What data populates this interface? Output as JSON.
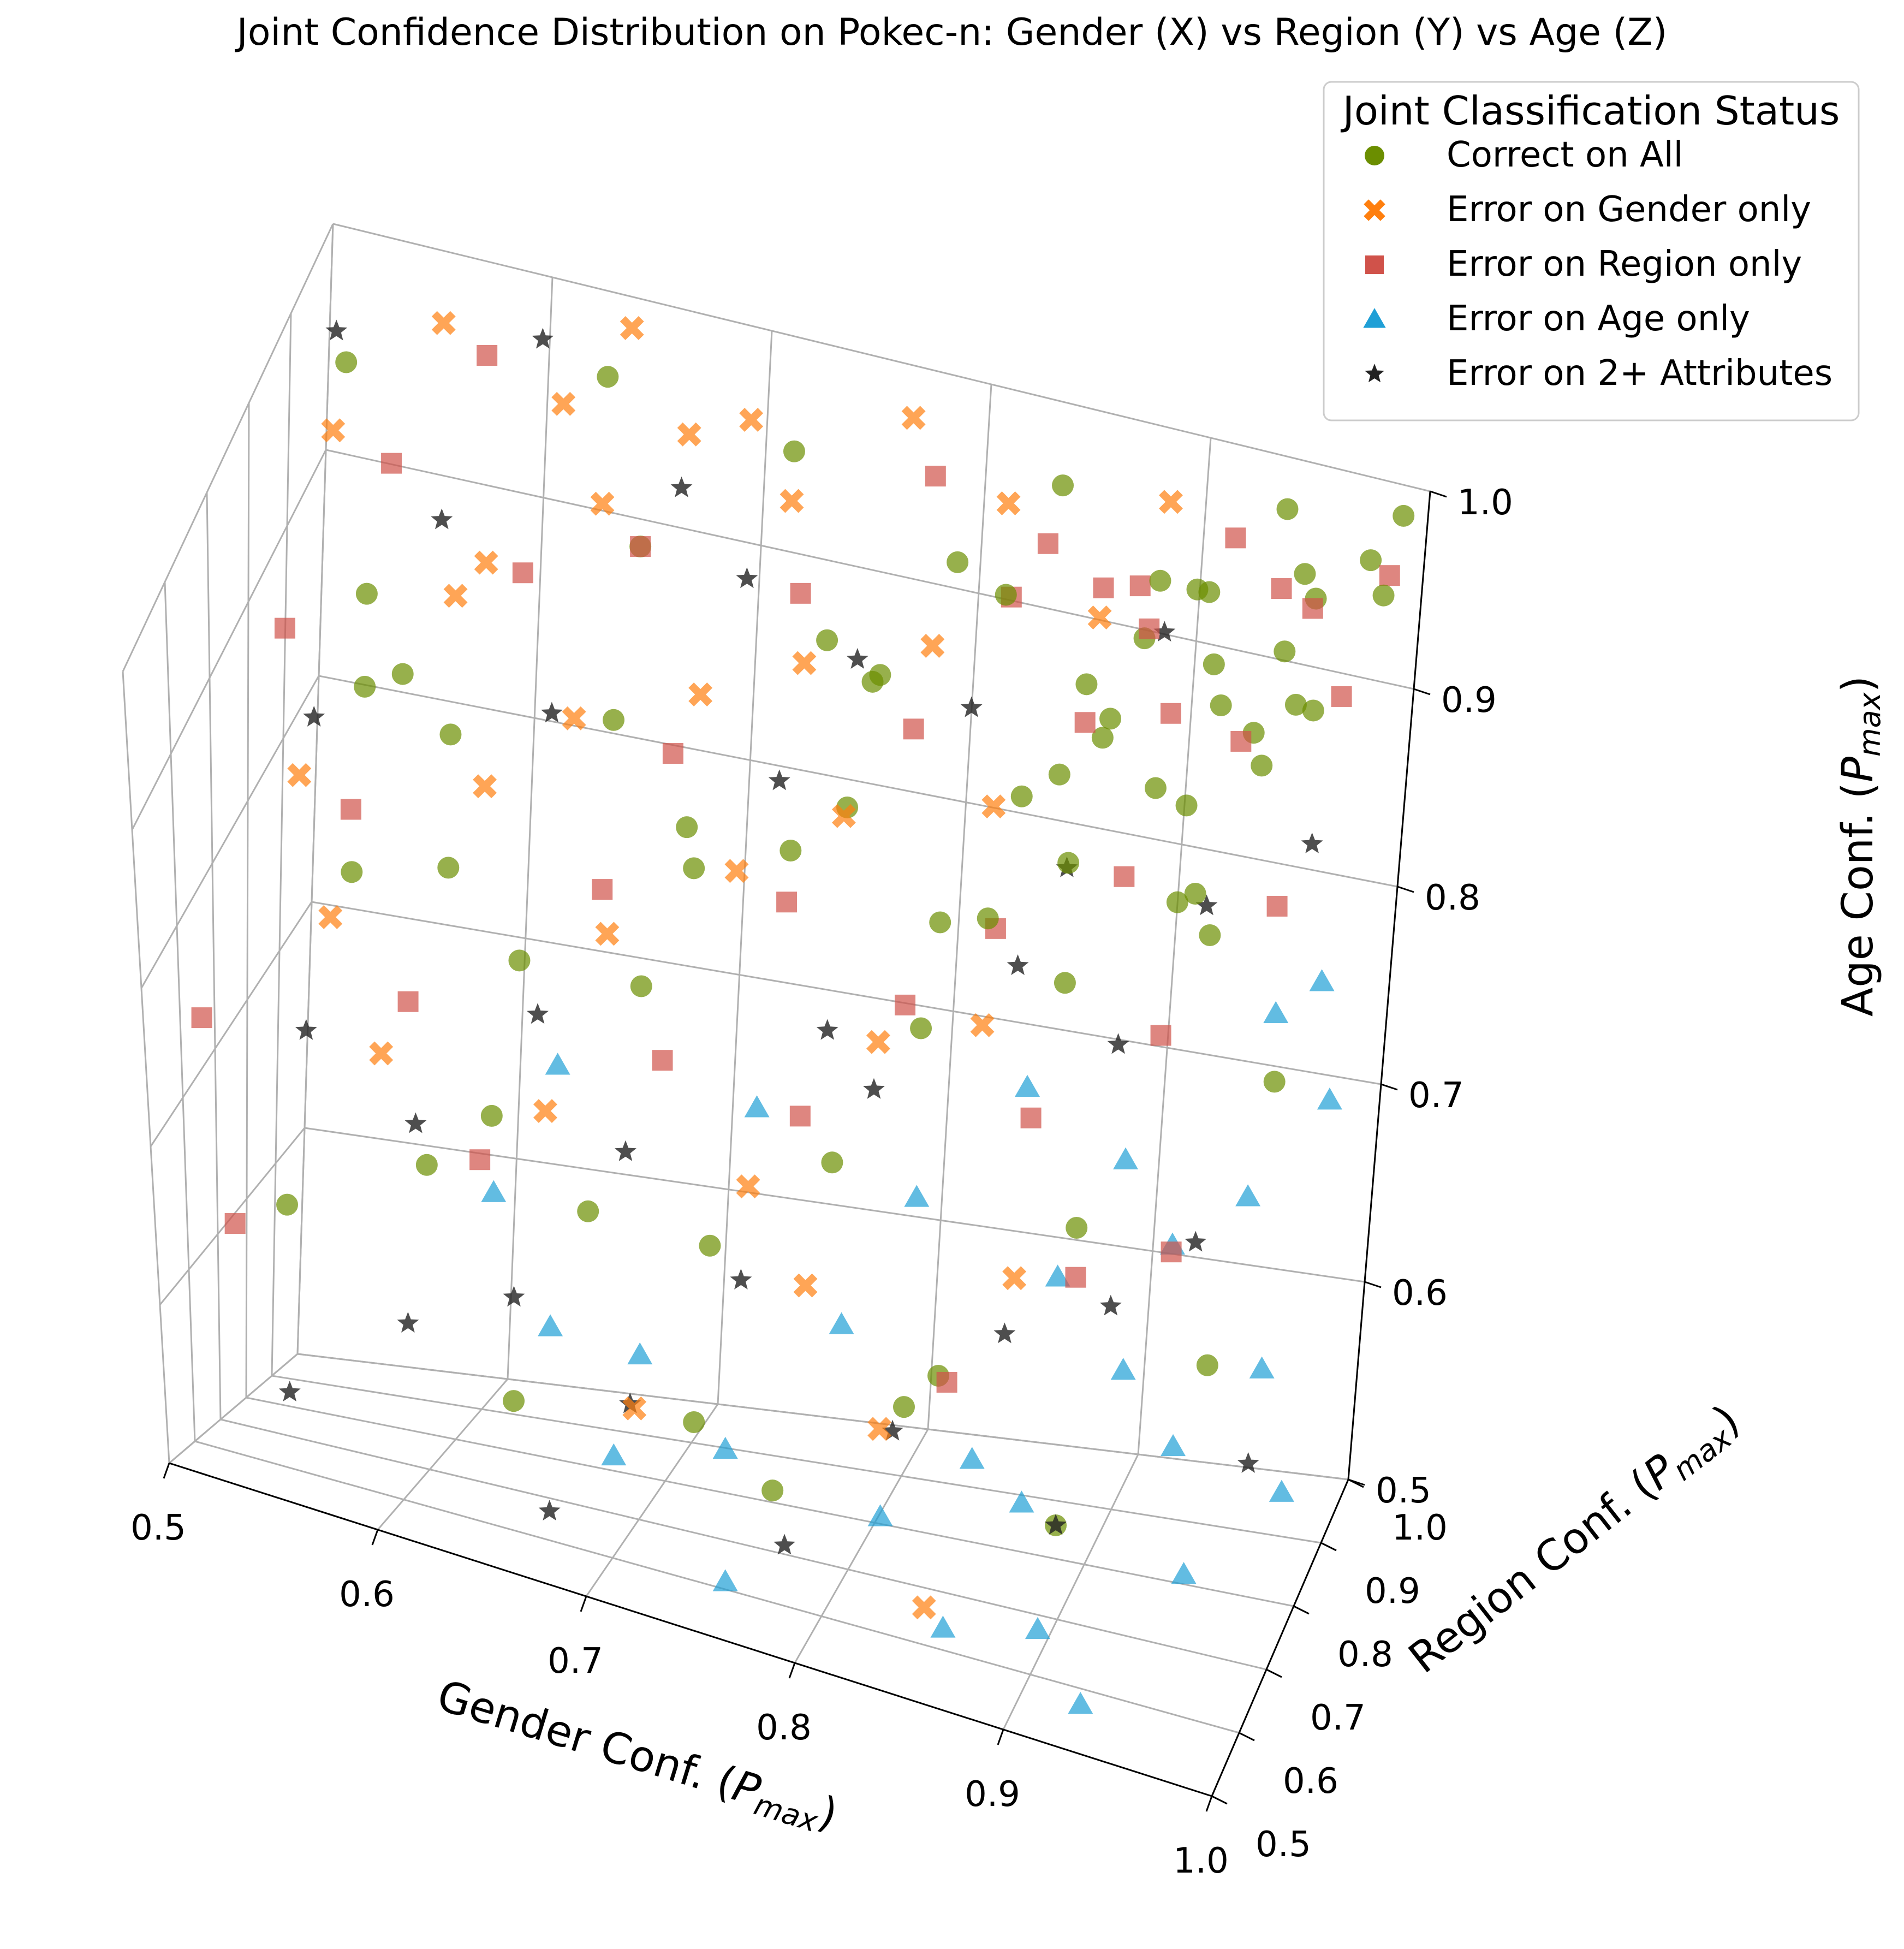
{
  "chart_data": {
    "type": "scatter",
    "dimensions": 3,
    "title": "Joint Confidence Distribution on Pokec-n: Gender (X) vs Region (Y) vs Age (Z)",
    "xlabel": "Gender Conf. (P_max)",
    "ylabel": "Region Conf. (P_max)",
    "zlabel": "Age Conf. (P_max)",
    "label_base": "Conf. (",
    "label_var": "P",
    "label_sub": "max",
    "label_close": ")",
    "axis_names": {
      "x": "Gender",
      "y": "Region",
      "z": "Age"
    },
    "xlim": [
      0.5,
      1.0
    ],
    "ylim": [
      0.5,
      1.0
    ],
    "zlim": [
      0.5,
      1.0
    ],
    "xticks": [
      "0.5",
      "0.6",
      "0.7",
      "0.8",
      "0.9",
      "1.0"
    ],
    "yticks": [
      "0.5",
      "0.6",
      "0.7",
      "0.8",
      "0.9",
      "1.0"
    ],
    "zticks": [
      "0.5",
      "0.6",
      "0.7",
      "0.8",
      "0.9",
      "1.0"
    ],
    "grid": true,
    "legend": {
      "title": "Joint Classification Status",
      "location": "top-right"
    },
    "series": [
      {
        "name": "Correct on All",
        "marker": "circle",
        "color": "#6b8e00",
        "points": [
          [
            0.52,
            0.93,
            0.97
          ],
          [
            0.55,
            0.82,
            0.91
          ],
          [
            0.58,
            0.6,
            0.86
          ],
          [
            0.6,
            0.75,
            0.88
          ],
          [
            0.62,
            0.55,
            0.72
          ],
          [
            0.64,
            0.7,
            0.79
          ],
          [
            0.66,
            0.9,
            0.93
          ],
          [
            0.68,
            0.65,
            0.68
          ],
          [
            0.7,
            0.8,
            0.84
          ],
          [
            0.72,
            0.95,
            0.97
          ],
          [
            0.74,
            0.58,
            0.6
          ],
          [
            0.75,
            0.78,
            0.85
          ],
          [
            0.77,
            0.88,
            0.9
          ],
          [
            0.79,
            0.66,
            0.74
          ],
          [
            0.8,
            0.92,
            0.95
          ],
          [
            0.82,
            0.72,
            0.8
          ],
          [
            0.84,
            0.96,
            0.98
          ],
          [
            0.85,
            0.6,
            0.66
          ],
          [
            0.86,
            0.85,
            0.89
          ],
          [
            0.88,
            0.75,
            0.83
          ],
          [
            0.89,
            0.93,
            0.96
          ],
          [
            0.9,
            0.68,
            0.73
          ],
          [
            0.92,
            0.9,
            0.94
          ],
          [
            0.93,
            0.8,
            0.87
          ],
          [
            0.94,
            0.97,
            0.99
          ],
          [
            0.95,
            0.85,
            0.92
          ],
          [
            0.96,
            0.93,
            0.97
          ],
          [
            0.97,
            0.62,
            0.7
          ],
          [
            0.98,
            0.96,
            0.98
          ],
          [
            0.99,
            0.99,
            0.99
          ],
          [
            0.53,
            0.72,
            0.62
          ],
          [
            0.57,
            0.95,
            0.74
          ],
          [
            0.61,
            0.83,
            0.66
          ],
          [
            0.65,
            0.62,
            0.57
          ],
          [
            0.69,
            0.9,
            0.78
          ],
          [
            0.73,
            0.7,
            0.66
          ],
          [
            0.76,
            0.98,
            0.86
          ],
          [
            0.78,
            0.56,
            0.58
          ],
          [
            0.81,
            0.85,
            0.8
          ],
          [
            0.83,
            0.64,
            0.62
          ],
          [
            0.87,
            0.92,
            0.88
          ],
          [
            0.91,
            0.58,
            0.6
          ],
          [
            0.94,
            0.78,
            0.86
          ],
          [
            0.96,
            0.88,
            0.94
          ],
          [
            0.98,
            0.72,
            0.82
          ],
          [
            0.54,
            0.88,
            0.84
          ],
          [
            0.59,
            0.68,
            0.94
          ],
          [
            0.63,
            0.98,
            0.97
          ],
          [
            0.67,
            0.77,
            0.9
          ],
          [
            0.71,
            0.6,
            0.84
          ],
          [
            0.75,
            0.87,
            0.92
          ],
          [
            0.78,
            0.74,
            0.9
          ],
          [
            0.82,
            0.94,
            0.93
          ],
          [
            0.85,
            0.7,
            0.88
          ],
          [
            0.88,
            0.86,
            0.92
          ],
          [
            0.91,
            0.95,
            0.95
          ],
          [
            0.93,
            0.73,
            0.9
          ],
          [
            0.95,
            0.97,
            0.96
          ],
          [
            0.97,
            0.86,
            0.95
          ],
          [
            0.99,
            0.93,
            0.98
          ],
          [
            0.9,
            0.88,
            0.88
          ],
          [
            0.92,
            0.94,
            0.9
          ],
          [
            0.94,
            0.9,
            0.91
          ],
          [
            0.86,
            0.93,
            0.9
          ],
          [
            0.88,
            0.97,
            0.91
          ],
          [
            0.9,
            0.99,
            0.93
          ],
          [
            0.84,
            0.88,
            0.86
          ],
          [
            0.87,
            0.82,
            0.86
          ],
          [
            0.92,
            0.83,
            0.9
          ],
          [
            0.95,
            0.91,
            0.95
          ]
        ]
      },
      {
        "name": "Error on Gender only",
        "marker": "x",
        "color": "#ff7f0e",
        "points": [
          [
            0.52,
            0.9,
            0.95
          ],
          [
            0.54,
            0.7,
            0.86
          ],
          [
            0.56,
            0.95,
            0.99
          ],
          [
            0.57,
            0.6,
            0.83
          ],
          [
            0.59,
            0.82,
            0.92
          ],
          [
            0.6,
            0.55,
            0.78
          ],
          [
            0.61,
            0.78,
            0.96
          ],
          [
            0.62,
            0.92,
            0.98
          ],
          [
            0.63,
            0.66,
            0.9
          ],
          [
            0.64,
            0.98,
            0.995
          ],
          [
            0.65,
            0.85,
            0.97
          ],
          [
            0.66,
            0.72,
            0.92
          ],
          [
            0.67,
            0.58,
            0.76
          ],
          [
            0.68,
            0.9,
            0.99
          ],
          [
            0.69,
            0.63,
            0.85
          ],
          [
            0.7,
            0.95,
            0.98
          ],
          [
            0.71,
            0.76,
            0.93
          ],
          [
            0.72,
            0.52,
            0.62
          ],
          [
            0.73,
            0.88,
            0.98
          ],
          [
            0.74,
            0.68,
            0.88
          ],
          [
            0.75,
            0.8,
            0.94
          ],
          [
            0.76,
            0.6,
            0.74
          ],
          [
            0.77,
            0.97,
            0.99
          ],
          [
            0.78,
            0.73,
            0.9
          ],
          [
            0.79,
            0.58,
            0.7
          ],
          [
            0.8,
            0.85,
            0.94
          ],
          [
            0.81,
            0.65,
            0.82
          ],
          [
            0.82,
            0.93,
            0.98
          ],
          [
            0.83,
            0.55,
            0.64
          ],
          [
            0.84,
            0.78,
            0.9
          ],
          [
            0.85,
            0.7,
            0.82
          ],
          [
            0.86,
            0.5,
            0.56
          ],
          [
            0.87,
            0.88,
            0.96
          ],
          [
            0.88,
            0.62,
            0.72
          ],
          [
            0.89,
            0.95,
            0.99
          ]
        ]
      },
      {
        "name": "Error on Region only",
        "marker": "square",
        "color": "#d0524a",
        "points": [
          [
            0.51,
            0.6,
            0.75
          ],
          [
            0.52,
            0.78,
            0.9
          ],
          [
            0.53,
            0.55,
            0.65
          ],
          [
            0.55,
            0.88,
            0.95
          ],
          [
            0.56,
            0.72,
            0.84
          ],
          [
            0.58,
            0.95,
            0.98
          ],
          [
            0.6,
            0.63,
            0.78
          ],
          [
            0.62,
            0.82,
            0.94
          ],
          [
            0.64,
            0.58,
            0.72
          ],
          [
            0.66,
            0.9,
            0.93
          ],
          [
            0.68,
            0.68,
            0.85
          ],
          [
            0.7,
            0.75,
            0.9
          ],
          [
            0.72,
            0.6,
            0.8
          ],
          [
            0.74,
            0.85,
            0.95
          ],
          [
            0.76,
            0.7,
            0.86
          ],
          [
            0.78,
            0.62,
            0.78
          ],
          [
            0.8,
            0.8,
            0.92
          ],
          [
            0.82,
            0.66,
            0.84
          ],
          [
            0.84,
            0.92,
            0.97
          ],
          [
            0.85,
            0.73,
            0.86
          ],
          [
            0.86,
            0.55,
            0.68
          ],
          [
            0.87,
            0.85,
            0.92
          ],
          [
            0.88,
            0.65,
            0.8
          ],
          [
            0.89,
            0.9,
            0.95
          ],
          [
            0.9,
            0.78,
            0.88
          ],
          [
            0.91,
            0.6,
            0.74
          ],
          [
            0.92,
            0.95,
            0.98
          ],
          [
            0.93,
            0.7,
            0.84
          ],
          [
            0.94,
            0.85,
            0.93
          ],
          [
            0.95,
            0.62,
            0.76
          ],
          [
            0.96,
            0.92,
            0.97
          ],
          [
            0.97,
            0.77,
            0.89
          ],
          [
            0.98,
            0.88,
            0.95
          ],
          [
            0.99,
            0.95,
            0.98
          ],
          [
            0.94,
            0.97,
            0.95
          ],
          [
            0.9,
            0.92,
            0.9
          ],
          [
            0.86,
            0.97,
            0.93
          ],
          [
            0.82,
            0.96,
            0.92
          ],
          [
            0.78,
            0.98,
            0.96
          ],
          [
            0.88,
            0.94,
            0.95
          ]
        ]
      },
      {
        "name": "Error on Age only",
        "marker": "triangle",
        "color": "#1f9fd6",
        "points": [
          [
            0.6,
            0.92,
            0.6
          ],
          [
            0.62,
            0.98,
            0.65
          ],
          [
            0.65,
            0.75,
            0.58
          ],
          [
            0.68,
            0.85,
            0.55
          ],
          [
            0.7,
            0.6,
            0.56
          ],
          [
            0.72,
            0.93,
            0.66
          ],
          [
            0.74,
            0.7,
            0.55
          ],
          [
            0.76,
            0.55,
            0.52
          ],
          [
            0.78,
            0.8,
            0.6
          ],
          [
            0.8,
            0.9,
            0.64
          ],
          [
            0.82,
            0.65,
            0.55
          ],
          [
            0.84,
            0.97,
            0.68
          ],
          [
            0.85,
            0.75,
            0.56
          ],
          [
            0.86,
            0.58,
            0.52
          ],
          [
            0.87,
            0.88,
            0.62
          ],
          [
            0.88,
            0.7,
            0.56
          ],
          [
            0.89,
            0.95,
            0.66
          ],
          [
            0.9,
            0.62,
            0.52
          ],
          [
            0.91,
            0.82,
            0.6
          ],
          [
            0.92,
            0.9,
            0.64
          ],
          [
            0.93,
            0.55,
            0.51
          ],
          [
            0.94,
            0.78,
            0.58
          ],
          [
            0.95,
            0.93,
            0.66
          ],
          [
            0.96,
            0.68,
            0.55
          ],
          [
            0.97,
            0.86,
            0.6
          ],
          [
            0.98,
            0.97,
            0.7
          ],
          [
            0.99,
            0.8,
            0.56
          ],
          [
            0.97,
            0.99,
            0.75
          ],
          [
            0.95,
            0.99,
            0.73
          ]
        ]
      },
      {
        "name": "Error on 2+ Attributes",
        "marker": "star",
        "color": "#222222",
        "points": [
          [
            0.51,
            0.96,
            0.97
          ],
          [
            0.53,
            0.8,
            0.85
          ],
          [
            0.55,
            0.65,
            0.74
          ],
          [
            0.57,
            0.9,
            0.92
          ],
          [
            0.59,
            0.72,
            0.68
          ],
          [
            0.61,
            0.55,
            0.62
          ],
          [
            0.63,
            0.85,
            0.86
          ],
          [
            0.65,
            0.62,
            0.63
          ],
          [
            0.67,
            0.95,
            0.94
          ],
          [
            0.69,
            0.7,
            0.7
          ],
          [
            0.71,
            0.58,
            0.6
          ],
          [
            0.73,
            0.88,
            0.84
          ],
          [
            0.75,
            0.66,
            0.66
          ],
          [
            0.77,
            0.78,
            0.76
          ],
          [
            0.79,
            0.53,
            0.56
          ],
          [
            0.81,
            0.92,
            0.88
          ],
          [
            0.83,
            0.6,
            0.62
          ],
          [
            0.85,
            0.82,
            0.8
          ],
          [
            0.87,
            0.68,
            0.66
          ],
          [
            0.89,
            0.96,
            0.92
          ],
          [
            0.91,
            0.58,
            0.6
          ],
          [
            0.93,
            0.85,
            0.84
          ],
          [
            0.95,
            0.72,
            0.72
          ],
          [
            0.97,
            0.9,
            0.86
          ],
          [
            0.99,
            0.64,
            0.64
          ],
          [
            0.56,
            0.5,
            0.57
          ],
          [
            0.6,
            0.98,
            0.98
          ],
          [
            0.7,
            0.96,
            0.9
          ],
          [
            0.8,
            0.72,
            0.76
          ],
          [
            0.9,
            0.8,
            0.78
          ],
          [
            0.68,
            0.52,
            0.54
          ],
          [
            0.76,
            0.9,
            0.9
          ],
          [
            0.86,
            0.9,
            0.82
          ],
          [
            0.92,
            0.66,
            0.7
          ],
          [
            0.64,
            0.76,
            0.74
          ]
        ]
      }
    ]
  }
}
